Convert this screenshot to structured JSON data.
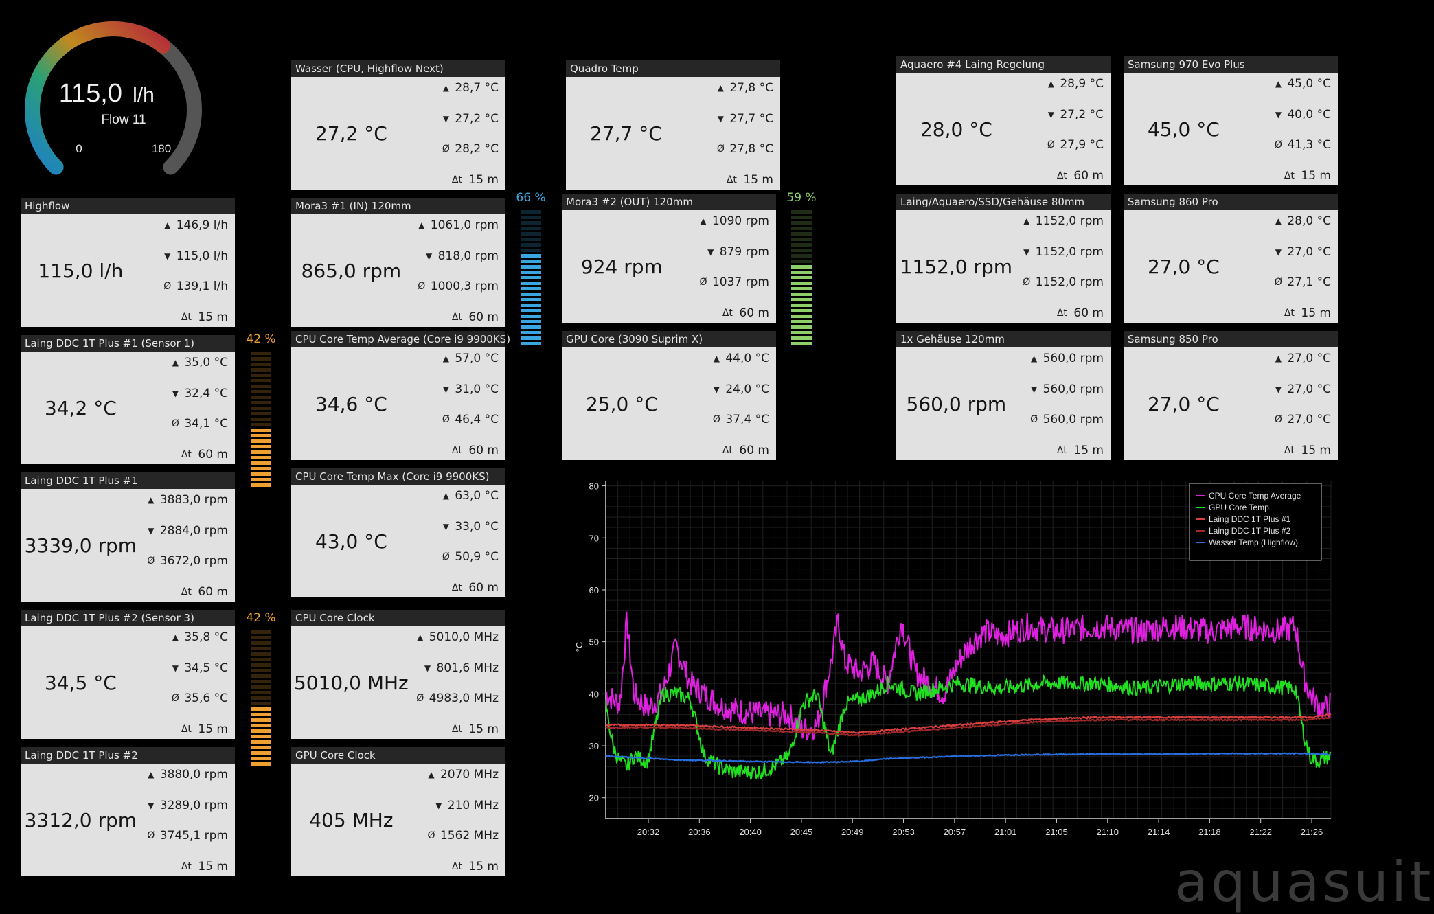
{
  "gauge": {
    "value": "115,0",
    "unit": "l/h",
    "label": "Flow 11",
    "min": "0",
    "max": "180",
    "fraction": 0.64
  },
  "tiles": {
    "highflow": {
      "title": "Highflow",
      "value": "115,0 l/h",
      "max": "146,9 l/h",
      "min": "115,0 l/h",
      "avg": "139,1 l/h",
      "dt": "15 m"
    },
    "laing1_sensor": {
      "title": "Laing DDC 1T Plus #1 (Sensor 1)",
      "value": "34,2 °C",
      "max": "35,0 °C",
      "min": "32,4 °C",
      "avg": "34,1 °C",
      "dt": "60 m"
    },
    "laing1": {
      "title": "Laing DDC 1T Plus #1",
      "value": "3339,0 rpm",
      "max": "3883,0 rpm",
      "min": "2884,0 rpm",
      "avg": "3672,0 rpm",
      "dt": "60 m"
    },
    "laing2_sensor": {
      "title": "Laing DDC 1T Plus #2 (Sensor 3)",
      "value": "34,5 °C",
      "max": "35,8 °C",
      "min": "34,5 °C",
      "avg": "35,6 °C",
      "dt": "15 m"
    },
    "laing2": {
      "title": "Laing DDC 1T Plus #2",
      "value": "3312,0 rpm",
      "max": "3880,0 rpm",
      "min": "3289,0 rpm",
      "avg": "3745,1 rpm",
      "dt": "15 m"
    },
    "wasser": {
      "title": "Wasser (CPU, Highflow Next)",
      "value": "27,2 °C",
      "max": "28,7 °C",
      "min": "27,2 °C",
      "avg": "28,2 °C",
      "dt": "15 m"
    },
    "mora1": {
      "title": "Mora3 #1 (IN) 120mm",
      "value": "865,0 rpm",
      "max": "1061,0 rpm",
      "min": "818,0 rpm",
      "avg": "1000,3 rpm",
      "dt": "60 m"
    },
    "cpu_avg": {
      "title": "CPU Core Temp Average (Core i9 9900KS)",
      "value": "34,6 °C",
      "max": "57,0 °C",
      "min": "31,0 °C",
      "avg": "46,4 °C",
      "dt": "60 m"
    },
    "cpu_max": {
      "title": "CPU Core Temp Max (Core i9 9900KS)",
      "value": "43,0 °C",
      "max": "63,0 °C",
      "min": "33,0 °C",
      "avg": "50,9 °C",
      "dt": "60 m"
    },
    "cpu_clock": {
      "title": "CPU Core Clock",
      "value": "5010,0 MHz",
      "max": "5010,0 MHz",
      "min": "801,6 MHz",
      "avg": "4983,0 MHz",
      "dt": "15 m"
    },
    "gpu_clock": {
      "title": "GPU Core Clock",
      "value": "405 MHz",
      "max": "2070 MHz",
      "min": "210 MHz",
      "avg": "1562 MHz",
      "dt": "15 m"
    },
    "quadro": {
      "title": "Quadro Temp",
      "value": "27,7 °C",
      "max": "27,8 °C",
      "min": "27,7 °C",
      "avg": "27,8 °C",
      "dt": "15 m"
    },
    "mora2": {
      "title": "Mora3 #2 (OUT) 120mm",
      "value": "924 rpm",
      "max": "1090 rpm",
      "min": "879 rpm",
      "avg": "1037 rpm",
      "dt": "60 m"
    },
    "gpu_core": {
      "title": "GPU Core (3090 Suprim X)",
      "value": "25,0 °C",
      "max": "44,0 °C",
      "min": "24,0 °C",
      "avg": "37,4 °C",
      "dt": "60 m"
    },
    "aquaero": {
      "title": "Aquaero #4 Laing Regelung",
      "value": "28,0 °C",
      "max": "28,9 °C",
      "min": "27,2 °C",
      "avg": "27,9 °C",
      "dt": "60 m"
    },
    "laing_ssd": {
      "title": "Laing/Aquaero/SSD/Gehäuse 80mm",
      "value": "1152,0 rpm",
      "max": "1152,0 rpm",
      "min": "1152,0 rpm",
      "avg": "1152,0 rpm",
      "dt": "60 m"
    },
    "gehaeuse": {
      "title": "1x Gehäuse 120mm",
      "value": "560,0 rpm",
      "max": "560,0 rpm",
      "min": "560,0 rpm",
      "avg": "560,0 rpm",
      "dt": "15 m"
    },
    "s970": {
      "title": "Samsung 970 Evo Plus",
      "value": "45,0 °C",
      "max": "45,0 °C",
      "min": "40,0 °C",
      "avg": "41,3 °C",
      "dt": "15 m"
    },
    "s860": {
      "title": "Samsung 860 Pro",
      "value": "27,0 °C",
      "max": "28,0 °C",
      "min": "27,0 °C",
      "avg": "27,1 °C",
      "dt": "15 m"
    },
    "s850": {
      "title": "Samsung 850 Pro",
      "value": "27,0 °C",
      "max": "27,0 °C",
      "min": "27,0 °C",
      "avg": "27,0 °C",
      "dt": "15 m"
    }
  },
  "bars": {
    "orange1": {
      "label": "42 %",
      "value": 0.42,
      "color": "#f0a030"
    },
    "orange2": {
      "label": "42 %",
      "value": 0.42,
      "color": "#f0a030"
    },
    "blue": {
      "label": "66 %",
      "value": 0.66,
      "color": "#3aa6e0"
    },
    "green": {
      "label": "59 %",
      "value": 0.59,
      "color": "#8fcf6a"
    }
  },
  "dt_symbol": "Δt",
  "watermark": "aquasuit",
  "chart_data": {
    "type": "line",
    "ylabel": "°C",
    "ylim": [
      16,
      81
    ],
    "yticks": [
      20,
      30,
      40,
      50,
      60,
      70,
      80
    ],
    "xticks": [
      "20:32",
      "20:36",
      "20:40",
      "20:45",
      "20:49",
      "20:53",
      "20:57",
      "21:01",
      "21:05",
      "21:10",
      "21:14",
      "21:18",
      "21:22",
      "21:26"
    ],
    "legend_position": "top-right",
    "grid": true,
    "series": [
      {
        "name": "CPU Core Temp Average",
        "color": "#e020e0",
        "points": [
          [
            0,
            40
          ],
          [
            2,
            38
          ],
          [
            3,
            54
          ],
          [
            4,
            40
          ],
          [
            6,
            37
          ],
          [
            8,
            40
          ],
          [
            10,
            49
          ],
          [
            12,
            42
          ],
          [
            14,
            40
          ],
          [
            16,
            38
          ],
          [
            18,
            37
          ],
          [
            22,
            36
          ],
          [
            26,
            36
          ],
          [
            28,
            33
          ],
          [
            30,
            34
          ],
          [
            32,
            46
          ],
          [
            33,
            54
          ],
          [
            34,
            46
          ],
          [
            36,
            44
          ],
          [
            38,
            46
          ],
          [
            40,
            42
          ],
          [
            42,
            54
          ],
          [
            44,
            44
          ],
          [
            46,
            42
          ],
          [
            48,
            40
          ],
          [
            50,
            46
          ],
          [
            52,
            50
          ],
          [
            54,
            52
          ],
          [
            56,
            51
          ],
          [
            60,
            53
          ],
          [
            64,
            52
          ],
          [
            70,
            53
          ],
          [
            76,
            52
          ],
          [
            80,
            53
          ],
          [
            86,
            52
          ],
          [
            90,
            53
          ],
          [
            96,
            52
          ],
          [
            98,
            53
          ],
          [
            99,
            44
          ],
          [
            100,
            40
          ],
          [
            101,
            38
          ],
          [
            102,
            37
          ],
          [
            103,
            38
          ]
        ]
      },
      {
        "name": "GPU Core Temp",
        "color": "#20e020",
        "points": [
          [
            0,
            38
          ],
          [
            1,
            30
          ],
          [
            2,
            27
          ],
          [
            3,
            26
          ],
          [
            4,
            28
          ],
          [
            6,
            27
          ],
          [
            8,
            40
          ],
          [
            10,
            40
          ],
          [
            12,
            39
          ],
          [
            14,
            28
          ],
          [
            16,
            26
          ],
          [
            18,
            25
          ],
          [
            22,
            25
          ],
          [
            24,
            26
          ],
          [
            26,
            28
          ],
          [
            28,
            38
          ],
          [
            30,
            40
          ],
          [
            32,
            28
          ],
          [
            34,
            38
          ],
          [
            36,
            39
          ],
          [
            38,
            40
          ],
          [
            40,
            42
          ],
          [
            44,
            40
          ],
          [
            50,
            42
          ],
          [
            56,
            41
          ],
          [
            62,
            42
          ],
          [
            70,
            42
          ],
          [
            76,
            41
          ],
          [
            82,
            42
          ],
          [
            90,
            42
          ],
          [
            98,
            41
          ],
          [
            99,
            33
          ],
          [
            100,
            28
          ],
          [
            101,
            27
          ],
          [
            103,
            28
          ]
        ]
      },
      {
        "name": "Laing DDC 1T Plus #1",
        "color": "#d84040",
        "points": [
          [
            0,
            34
          ],
          [
            10,
            34
          ],
          [
            20,
            33.5
          ],
          [
            30,
            33
          ],
          [
            36,
            32.5
          ],
          [
            40,
            33
          ],
          [
            50,
            34
          ],
          [
            60,
            35
          ],
          [
            70,
            35.5
          ],
          [
            80,
            35.5
          ],
          [
            90,
            35.5
          ],
          [
            100,
            35.5
          ],
          [
            103,
            36
          ]
        ]
      },
      {
        "name": "Laing DDC 1T Plus #2",
        "color": "#a02828",
        "points": [
          [
            0,
            33.5
          ],
          [
            10,
            33.5
          ],
          [
            20,
            33
          ],
          [
            30,
            32.5
          ],
          [
            36,
            32
          ],
          [
            40,
            32.5
          ],
          [
            50,
            33.5
          ],
          [
            60,
            34.5
          ],
          [
            70,
            35
          ],
          [
            80,
            35
          ],
          [
            90,
            35
          ],
          [
            100,
            35
          ],
          [
            103,
            35.5
          ]
        ]
      },
      {
        "name": "Wasser Temp (Highflow)",
        "color": "#2a6fe0",
        "points": [
          [
            0,
            28
          ],
          [
            10,
            27.3
          ],
          [
            20,
            27
          ],
          [
            30,
            26.8
          ],
          [
            36,
            27
          ],
          [
            40,
            27.5
          ],
          [
            50,
            28
          ],
          [
            60,
            28.3
          ],
          [
            70,
            28.4
          ],
          [
            80,
            28.4
          ],
          [
            90,
            28.5
          ],
          [
            100,
            28.5
          ],
          [
            103,
            28.3
          ]
        ]
      }
    ]
  }
}
